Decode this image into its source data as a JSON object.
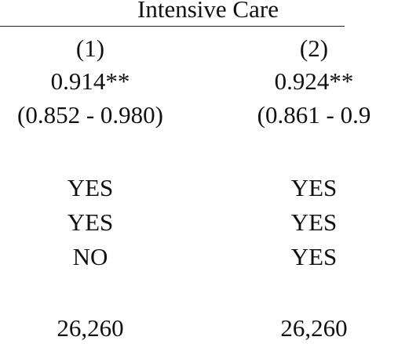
{
  "table": {
    "group_header": "Intensive Care",
    "columns": [
      {
        "label": "(1)",
        "estimate": "0.914**",
        "ci": "(0.852 - 0.980)",
        "controls": [
          "YES",
          "YES",
          "NO"
        ],
        "observations": "26,260"
      },
      {
        "label": "(2)",
        "estimate": "0.924**",
        "ci": "(0.861 - 0.9",
        "controls": [
          "YES",
          "YES",
          "YES"
        ],
        "observations": "26,260"
      }
    ]
  }
}
